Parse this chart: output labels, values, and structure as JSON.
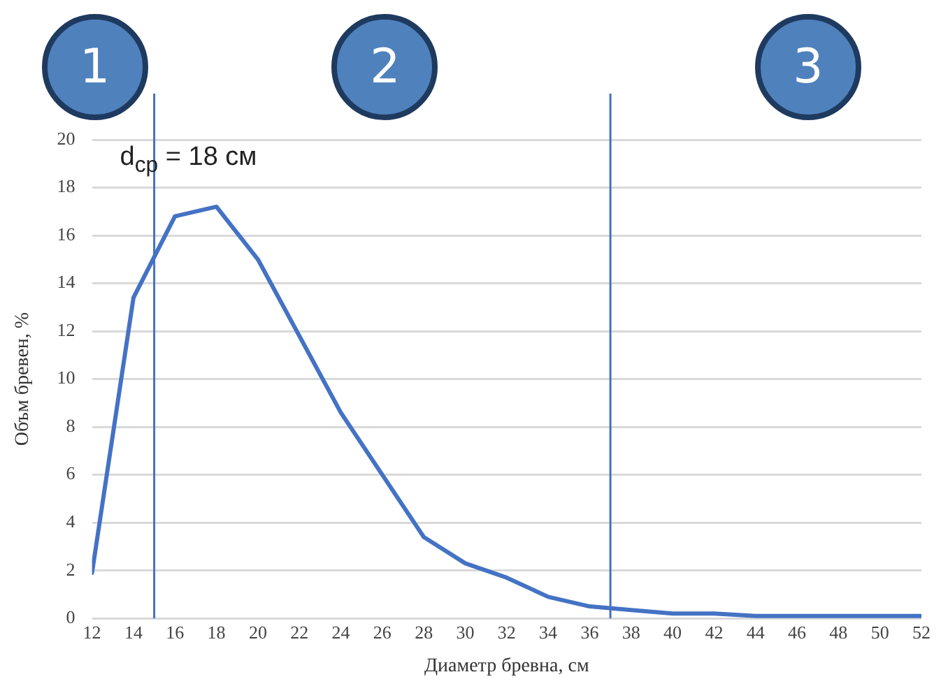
{
  "chart_data": {
    "type": "line",
    "xlabel": "Диаметр бревна, см",
    "ylabel": "Объм бревен, %",
    "x": [
      12,
      14,
      16,
      18,
      20,
      22,
      24,
      26,
      28,
      30,
      32,
      34,
      36,
      38,
      40,
      42,
      44,
      46,
      48,
      50,
      52
    ],
    "series": [
      {
        "color": "#4472c4",
        "values": [
          1.9,
          13.4,
          16.8,
          17.2,
          15.0,
          11.8,
          8.6,
          6.0,
          3.4,
          2.3,
          1.7,
          0.9,
          0.5,
          0.35,
          0.2,
          0.2,
          0.1,
          0.1,
          0.1,
          0.1,
          0.1
        ]
      }
    ],
    "xlim": [
      12,
      52
    ],
    "xticks": [
      12,
      14,
      16,
      18,
      20,
      22,
      24,
      26,
      28,
      30,
      32,
      34,
      36,
      38,
      40,
      42,
      44,
      46,
      48,
      50,
      52
    ],
    "ylim": [
      0,
      20
    ],
    "yticks": [
      0,
      2,
      4,
      6,
      8,
      10,
      12,
      14,
      16,
      18,
      20
    ],
    "ref_lines": [
      {
        "axis": "x",
        "value": 15,
        "color": "#4472c4"
      },
      {
        "axis": "x",
        "value": 37,
        "color": "#4472c4"
      }
    ],
    "annotations": [
      "d$_{ср}$ = 18 см",
      "1",
      "2",
      "3"
    ],
    "grid": "y",
    "legend": false,
    "marker": "none",
    "line_style": "solid"
  }
}
